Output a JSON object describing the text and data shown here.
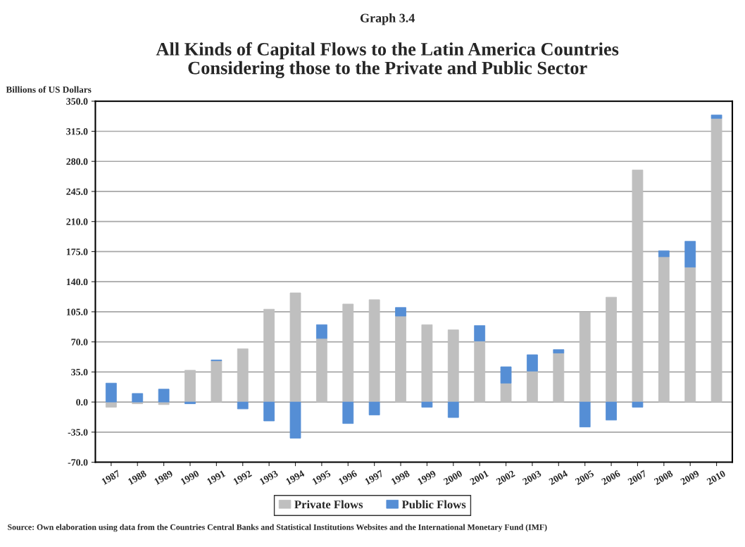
{
  "chart_data": {
    "type": "bar",
    "stacked": true,
    "subtitle": "Graph 3.4",
    "title": "All Kinds of Capital Flows to the Latin America Countries\nConsidering those to the Private and Public Sector",
    "ylabel": "Billions of US Dollars",
    "categories": [
      "1987",
      "1988",
      "1989",
      "1990",
      "1991",
      "1992",
      "1993",
      "1994",
      "1995",
      "1996",
      "1997",
      "1998",
      "1999",
      "2000",
      "2001",
      "2002",
      "2003",
      "2004",
      "2005",
      "2006",
      "2007",
      "2008",
      "2009",
      "2010"
    ],
    "series": [
      {
        "name": "Private Flows",
        "color": "#bfbfbf",
        "values": [
          -6,
          -2,
          -3,
          37,
          48,
          62,
          108,
          127,
          74,
          114,
          119,
          100,
          90,
          84,
          71,
          22,
          36,
          57,
          104,
          122,
          270,
          169,
          157,
          330
        ]
      },
      {
        "name": "Public Flows",
        "color": "#558ed5",
        "values": [
          22,
          10,
          15,
          -2,
          1,
          -8,
          -22,
          -42,
          16,
          -25,
          -15,
          10,
          -6,
          -18,
          18,
          19,
          19,
          4,
          -29,
          -21,
          -6,
          7,
          30,
          4
        ]
      }
    ],
    "ylim": [
      -70,
      350
    ],
    "yticks": [
      {
        "value": -70,
        "label": "-70.0"
      },
      {
        "value": -35,
        "label": "-35.0"
      },
      {
        "value": 0,
        "label": "0.0"
      },
      {
        "value": 35,
        "label": "35.0"
      },
      {
        "value": 70,
        "label": "70.0"
      },
      {
        "value": 105,
        "label": "105.0"
      },
      {
        "value": 140,
        "label": "140.0"
      },
      {
        "value": 175,
        "label": "175.0"
      },
      {
        "value": 210,
        "label": "210.0"
      },
      {
        "value": 245,
        "label": "245.0"
      },
      {
        "value": 280,
        "label": "280.0"
      },
      {
        "value": 315,
        "label": "315.0"
      },
      {
        "value": 350,
        "label": "350.0"
      }
    ],
    "grid": "y",
    "legend": "bottom",
    "annotations": [
      "Source: Own elaboration using data from the Countries Central Banks and Statistical Institutions Websites and the International Monetary Fund (IMF)"
    ]
  }
}
